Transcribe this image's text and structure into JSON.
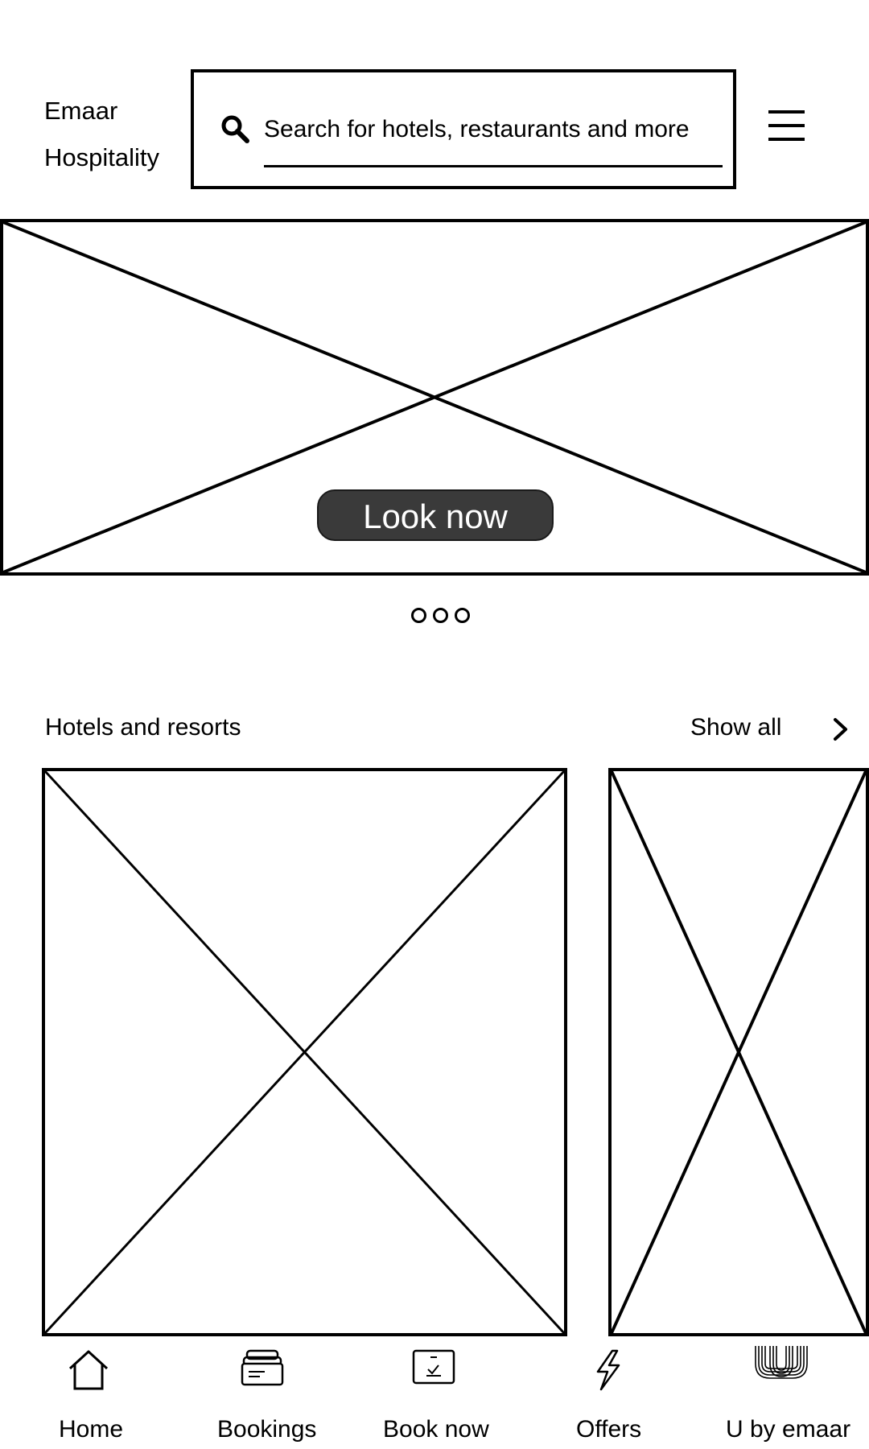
{
  "header": {
    "brand_line1": "Emaar",
    "brand_line2": "Hospitality",
    "search": {
      "placeholder": "Search for hotels, restaurants and more",
      "icon": "search-icon"
    },
    "menu_icon": "hamburger-menu-icon"
  },
  "hero": {
    "button_label": "Look now",
    "carousel_dots": 3
  },
  "hotels": {
    "title": "Hotels and resorts",
    "show_all": "Show all"
  },
  "bottom_nav": {
    "items": [
      {
        "label": "Home",
        "icon": "home-icon"
      },
      {
        "label": "Bookings",
        "icon": "bookings-icon"
      },
      {
        "label": "Book now",
        "icon": "calendar-check-icon"
      },
      {
        "label": "Offers",
        "icon": "lightning-icon"
      },
      {
        "label": "U by emaar",
        "icon": "u-by-emaar-logo-icon"
      }
    ]
  },
  "colors": {
    "line": "#000000",
    "button_bg": "#3a3a3a",
    "button_text": "#ffffff",
    "background": "#ffffff"
  }
}
